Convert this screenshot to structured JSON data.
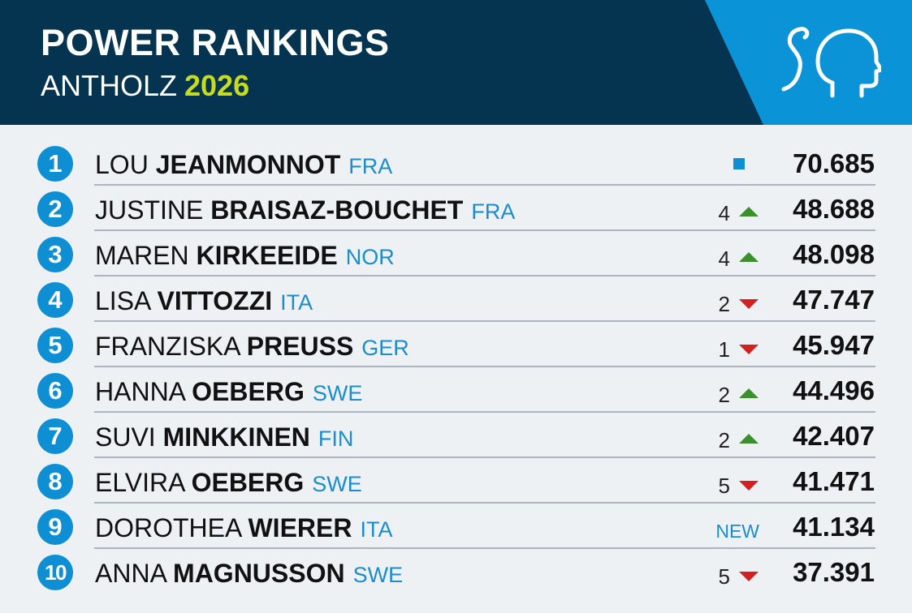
{
  "header": {
    "title": "POWER RANKINGS",
    "subtitle_place": "ANTHOLZ",
    "subtitle_year": "2026",
    "logo_icon": "head-profile-icon",
    "colors": {
      "header_bg": "#04344f",
      "logo_panel_bg": "#0a93d6",
      "year": "#c8dc1e"
    }
  },
  "rankings": [
    {
      "rank": "1",
      "first": "LOU",
      "last": "JEANMONNOT",
      "nation": "FRA",
      "change": "",
      "trend": "same",
      "score": "70.685"
    },
    {
      "rank": "2",
      "first": "JUSTINE",
      "last": "BRAISAZ-BOUCHET",
      "nation": "FRA",
      "change": "4",
      "trend": "up",
      "score": "48.688"
    },
    {
      "rank": "3",
      "first": "MAREN",
      "last": "KIRKEEIDE",
      "nation": "NOR",
      "change": "4",
      "trend": "up",
      "score": "48.098"
    },
    {
      "rank": "4",
      "first": "LISA",
      "last": "VITTOZZI",
      "nation": "ITA",
      "change": "2",
      "trend": "down",
      "score": "47.747"
    },
    {
      "rank": "5",
      "first": "FRANZISKA",
      "last": "PREUSS",
      "nation": "GER",
      "change": "1",
      "trend": "down",
      "score": "45.947"
    },
    {
      "rank": "6",
      "first": "HANNA",
      "last": "OEBERG",
      "nation": "SWE",
      "change": "2",
      "trend": "up",
      "score": "44.496"
    },
    {
      "rank": "7",
      "first": "SUVI",
      "last": "MINKKINEN",
      "nation": "FIN",
      "change": "2",
      "trend": "up",
      "score": "42.407"
    },
    {
      "rank": "8",
      "first": "ELVIRA",
      "last": "OEBERG",
      "nation": "SWE",
      "change": "5",
      "trend": "down",
      "score": "41.471"
    },
    {
      "rank": "9",
      "first": "DOROTHEA",
      "last": "WIERER",
      "nation": "ITA",
      "change": "NEW",
      "trend": "new",
      "score": "41.134"
    },
    {
      "rank": "10",
      "first": "ANNA",
      "last": "MAGNUSSON",
      "nation": "SWE",
      "change": "5",
      "trend": "down",
      "score": "37.391"
    }
  ]
}
